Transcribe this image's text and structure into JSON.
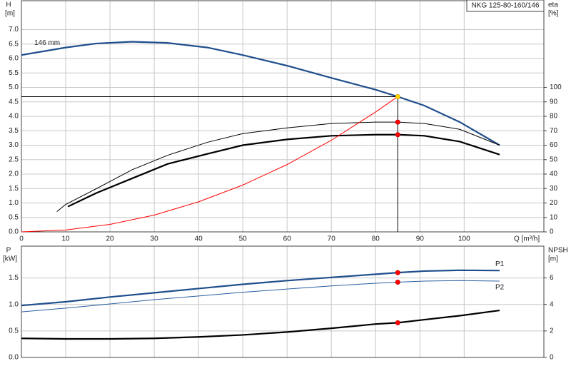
{
  "chart_data": [
    {
      "type": "line",
      "title": "NKG 125-80-160/146",
      "ylabel": "H",
      "yunit": "[m]",
      "y2label": "eta",
      "y2unit": "[%]",
      "xlabel": "Q [m³/h]",
      "xlim": [
        0,
        118
      ],
      "xticks": [
        0,
        10,
        20,
        30,
        40,
        50,
        60,
        70,
        80,
        90,
        100
      ],
      "xtick_labels": true,
      "ylim": [
        0,
        8
      ],
      "yticks": [
        {
          "value": 0,
          "label": "0.0"
        },
        {
          "value": 0.5,
          "label": "0.5"
        },
        {
          "value": 1,
          "label": "1.0"
        },
        {
          "value": 1.5,
          "label": "1.5"
        },
        {
          "value": 2,
          "label": "2.0"
        },
        {
          "value": 2.5,
          "label": "2.5"
        },
        {
          "value": 3,
          "label": "3.0"
        },
        {
          "value": 3.5,
          "label": "3.5"
        },
        {
          "value": 4,
          "label": "4.0"
        },
        {
          "value": 4.5,
          "label": "4.5"
        },
        {
          "value": 5,
          "label": "5.0"
        },
        {
          "value": 5.5,
          "label": "5.5"
        },
        {
          "value": 6,
          "label": "6.0"
        },
        {
          "value": 6.5,
          "label": "6.5"
        },
        {
          "value": 7,
          "label": "7.0"
        }
      ],
      "y2lim": [
        0,
        160
      ],
      "y2ticks": [
        0,
        10,
        20,
        30,
        40,
        50,
        60,
        70,
        80,
        90,
        100
      ],
      "grid": true,
      "operating_q": 85,
      "series": [
        {
          "name": "146 mm",
          "color": "#1f4e8c",
          "style": "thick",
          "marker": "#ffd700",
          "x": [
            0,
            10,
            17,
            25,
            33,
            42,
            50,
            60,
            70,
            80,
            85,
            91,
            99,
            108
          ],
          "values": [
            6.12,
            6.38,
            6.52,
            6.58,
            6.54,
            6.38,
            6.12,
            5.75,
            5.33,
            4.92,
            4.68,
            4.37,
            3.8,
            3.0
          ]
        },
        {
          "color": "#000000",
          "style": "thin",
          "axis": "y2",
          "marker": "#ff0000",
          "x": [
            8,
            10,
            17,
            25,
            33,
            42,
            50,
            60,
            70,
            80,
            85,
            91,
            99,
            108
          ],
          "values": [
            14,
            19,
            30,
            43,
            53,
            62,
            68,
            72,
            75,
            76,
            76,
            75,
            71,
            60
          ]
        },
        {
          "color": "#000000",
          "style": "thick",
          "axis": "y2",
          "marker": "#ff0000",
          "x": [
            10.5,
            17,
            25,
            33,
            42,
            50,
            60,
            70,
            80,
            85,
            91,
            99,
            108
          ],
          "values": [
            17.5,
            27,
            37,
            47,
            54,
            60,
            64,
            66.5,
            67.3,
            67.3,
            66.5,
            62.5,
            53.5
          ]
        },
        {
          "color": "#ff0000",
          "style": "thin",
          "x": [
            0,
            10,
            20,
            30,
            40,
            50,
            60,
            70,
            80,
            85
          ],
          "values": [
            0,
            0.065,
            0.26,
            0.58,
            1.04,
            1.62,
            2.33,
            3.17,
            4.15,
            4.68
          ]
        }
      ]
    },
    {
      "type": "line",
      "ylabel": "P",
      "yunit": "[kW]",
      "y2label": "NPSH",
      "y2unit": "[m]",
      "xlim": [
        0,
        118
      ],
      "xticks": [
        0,
        10,
        20,
        30,
        40,
        50,
        60,
        70,
        80,
        90,
        100
      ],
      "xtick_labels": false,
      "ylim": [
        0,
        2.1
      ],
      "yticks": [
        {
          "value": 0,
          "label": "0.0"
        },
        {
          "value": 0.5,
          "label": "0.5"
        },
        {
          "value": 1,
          "label": "1.0"
        },
        {
          "value": 1.5,
          "label": "1.5"
        }
      ],
      "y2lim": [
        0,
        8.4
      ],
      "y2ticks": [
        0,
        2,
        4,
        6
      ],
      "grid": true,
      "operating_q": 85,
      "series": [
        {
          "name": "P1",
          "color": "#1f4e8c",
          "style": "thick",
          "marker": "#ff0000",
          "x": [
            0,
            10,
            20,
            30,
            40,
            50,
            60,
            70,
            80,
            85,
            91,
            99,
            108
          ],
          "values": [
            0.98,
            1.05,
            1.14,
            1.22,
            1.3,
            1.38,
            1.45,
            1.51,
            1.57,
            1.6,
            1.63,
            1.645,
            1.64
          ]
        },
        {
          "name": "P2",
          "color": "#2a5fa0",
          "style": "thin",
          "marker": "#ff0000",
          "x": [
            0,
            10,
            20,
            30,
            40,
            50,
            60,
            70,
            80,
            85,
            91,
            99,
            108
          ],
          "values": [
            0.86,
            0.93,
            1.01,
            1.09,
            1.16,
            1.23,
            1.29,
            1.35,
            1.4,
            1.42,
            1.44,
            1.45,
            1.44
          ]
        },
        {
          "color": "#000000",
          "style": "thick",
          "axis": "y2",
          "marker": "#ff0000",
          "x": [
            0,
            10,
            20,
            30,
            40,
            50,
            60,
            70,
            80,
            85,
            91,
            99,
            108
          ],
          "values": [
            1.44,
            1.4,
            1.4,
            1.44,
            1.55,
            1.7,
            1.92,
            2.2,
            2.52,
            2.62,
            2.85,
            3.15,
            3.55
          ]
        }
      ]
    }
  ]
}
